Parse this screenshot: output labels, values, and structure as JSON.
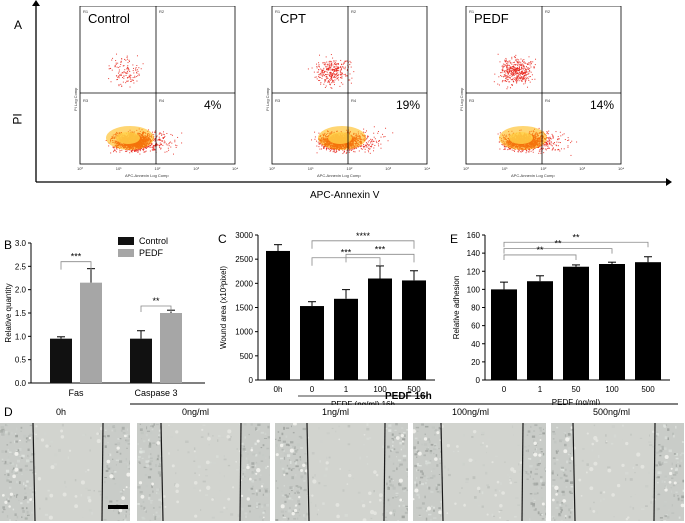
{
  "panel_a": {
    "letter": "A",
    "y_axis_title": "PI",
    "x_axis_title": "APC-Annexin V",
    "plots": [
      {
        "label": "Control",
        "percent": "4%",
        "seed": 11
      },
      {
        "label": "CPT",
        "percent": "19%",
        "seed": 23
      },
      {
        "label": "PEDF",
        "percent": "14%",
        "seed": 37
      }
    ],
    "quadrants": [
      "R1",
      "R2",
      "R3",
      "R4"
    ],
    "plot_xlabel": "APC-Annexin Log Comp",
    "plot_ylabel": "PI Log Comp",
    "ticks": [
      "10⁰",
      "10¹",
      "10²",
      "10³",
      "10⁴"
    ],
    "colors": {
      "dots": "#e8231a",
      "hot": "#ffb400"
    }
  },
  "chart_data": [
    {
      "type": "bar",
      "panel": "B",
      "categories": [
        "Fas",
        "Caspase 3"
      ],
      "series": [
        {
          "name": "Control",
          "values": [
            0.95,
            0.95
          ],
          "errors": [
            0.04,
            0.17
          ],
          "color": "#111111"
        },
        {
          "name": "PEDF",
          "values": [
            2.15,
            1.5
          ],
          "errors": [
            0.3,
            0.06
          ],
          "color": "#a6a6a6"
        }
      ],
      "ylabel": "Relative quantity",
      "ylim": [
        0,
        3.0
      ],
      "yticks": [
        "0.0",
        "0.5",
        "1.0",
        "1.5",
        "2.0",
        "2.5",
        "3.0"
      ],
      "significance": [
        "***",
        "**"
      ],
      "legend_position": "top-right"
    },
    {
      "type": "bar",
      "panel": "C",
      "categories": [
        "0h",
        "0",
        "1",
        "100",
        "500"
      ],
      "values": [
        2670,
        1530,
        1680,
        2100,
        2060
      ],
      "errors": [
        130,
        90,
        190,
        260,
        200
      ],
      "ylabel": "Wound area (x10³pixel)",
      "xlabel": "PEDF (ng/ml) 16h",
      "ylim": [
        0,
        3000
      ],
      "yticks": [
        "0",
        "500",
        "1000",
        "1500",
        "2000",
        "2500",
        "3000"
      ],
      "significance": [
        "****",
        "***",
        "***"
      ]
    },
    {
      "type": "bar",
      "panel": "E",
      "categories": [
        "0",
        "1",
        "50",
        "100",
        "500"
      ],
      "values": [
        100,
        109,
        125,
        128,
        130
      ],
      "errors": [
        8,
        6,
        2,
        2,
        6
      ],
      "ylabel": "Relative adhesion",
      "xlabel": "PEDF (ng/ml)",
      "ylim": [
        0,
        160
      ],
      "yticks": [
        "0",
        "20",
        "40",
        "60",
        "80",
        "100",
        "120",
        "140",
        "160"
      ],
      "significance": [
        "**",
        "**",
        "**"
      ]
    }
  ],
  "panel_d": {
    "letter": "D",
    "header": "PEDF 16h",
    "labels": [
      "0h",
      "0ng/ml",
      "1ng/ml",
      "100ng/ml",
      "500ng/ml"
    ]
  }
}
